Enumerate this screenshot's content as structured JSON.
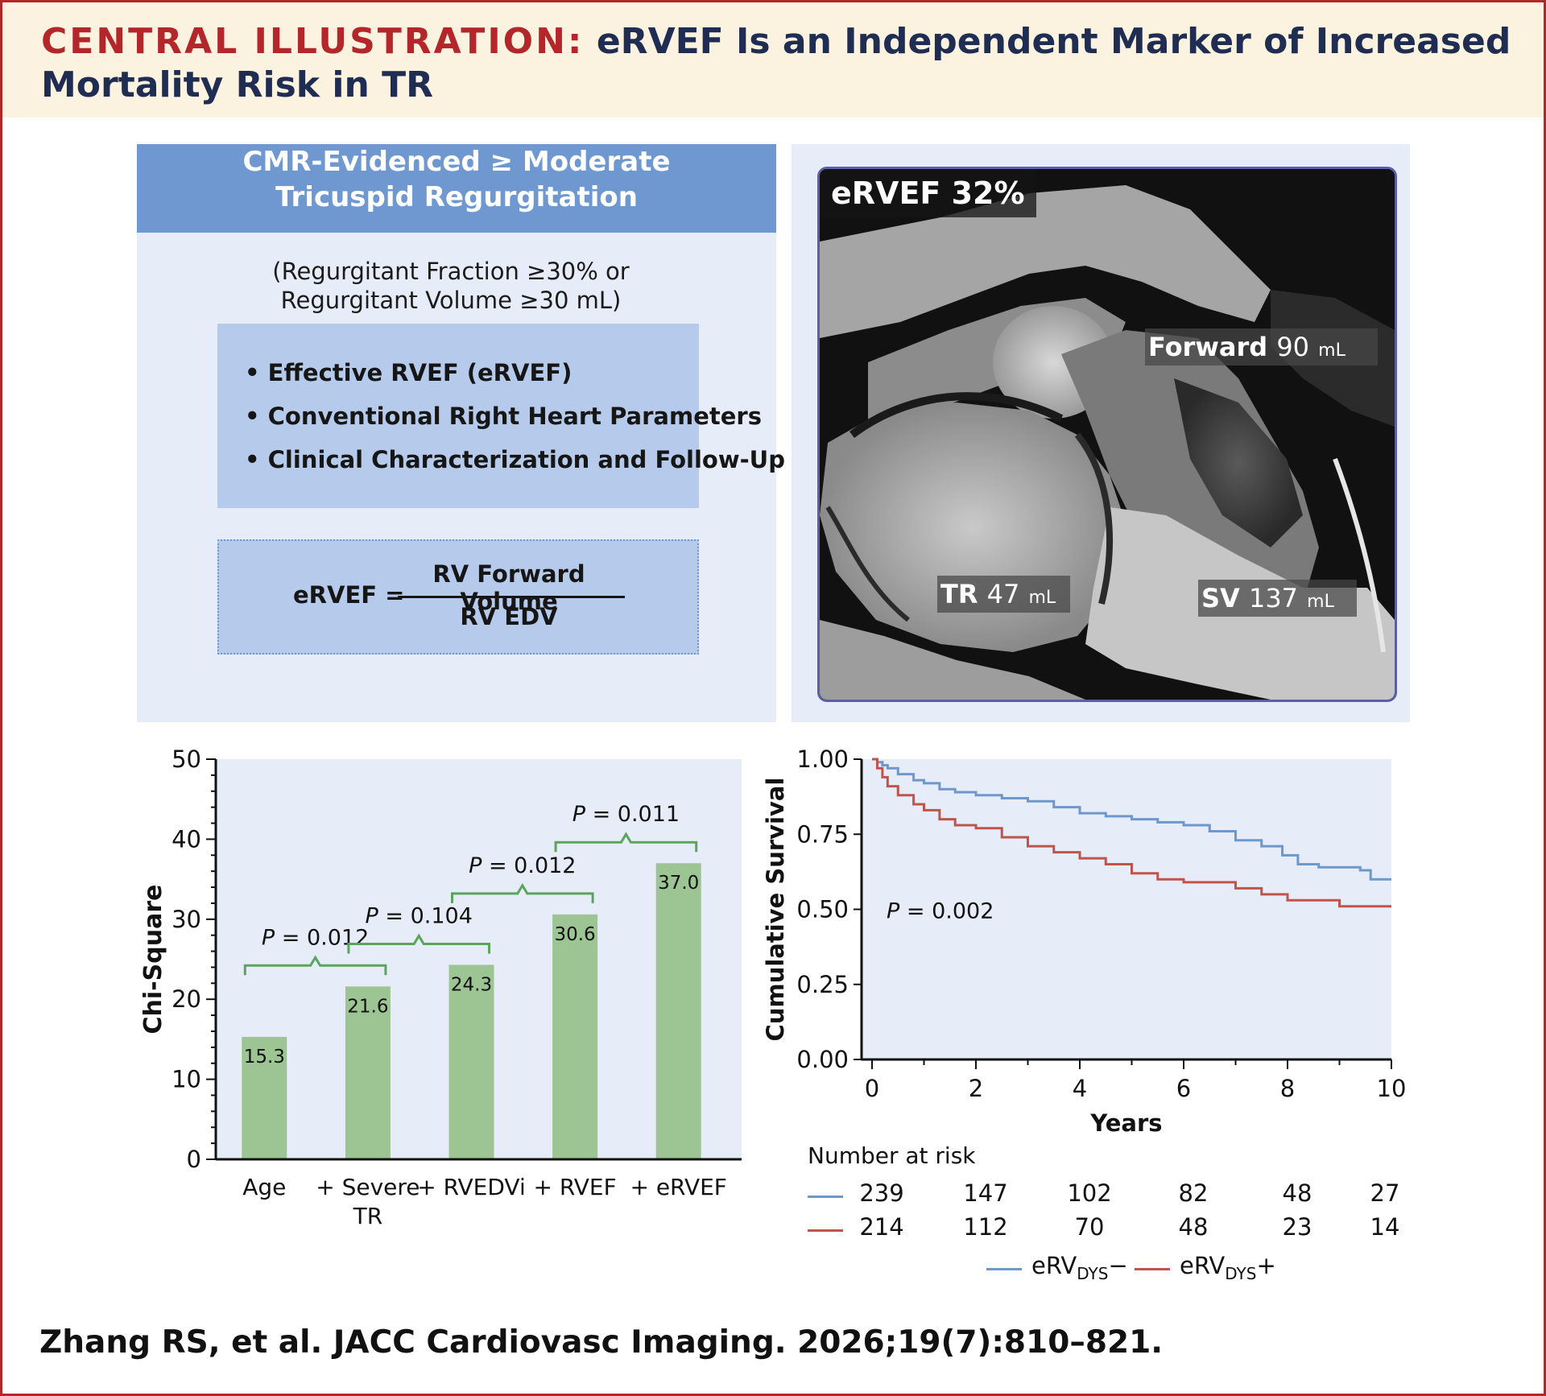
{
  "header": {
    "kicker": "CENTRAL ILLUSTRATION:",
    "title": "eRVEF Is an Independent Marker of Increased Mortality Risk in TR"
  },
  "left_panel": {
    "heading_line1": "CMR-Evidenced ≥ Moderate",
    "heading_line2": "Tricuspid Regurgitation",
    "note_line1": "(Regurgitant Fraction ≥30% or",
    "note_line2": "Regurgitant Volume ≥30 mL)",
    "bullets": [
      "• Effective RVEF (eRVEF)",
      "• Conventional Right Heart Parameters",
      "• Clinical Characterization and Follow-Up"
    ],
    "formula": {
      "lhs": "eRVEF =",
      "numerator": "RV Forward Volume",
      "denominator": "RV EDV"
    }
  },
  "mri_panel": {
    "ervef_label": "eRVEF 32%",
    "forward_label": "Forward",
    "forward_value": "90",
    "forward_unit": "mL",
    "tr_label": "TR",
    "tr_value": "47",
    "tr_unit": "mL",
    "sv_label": "SV",
    "sv_value": "137",
    "sv_unit": "mL"
  },
  "chart_data": [
    {
      "type": "bar",
      "ylabel": "Chi-Square",
      "ylim": [
        0,
        50
      ],
      "yticks": [
        0,
        10,
        20,
        30,
        40,
        50
      ],
      "categories": [
        "Age",
        "+ Severe TR",
        "+ RVEDVi",
        "+ RVEF",
        "+ eRVEF"
      ],
      "category_lines": [
        [
          "Age"
        ],
        [
          "+ Severe",
          "TR"
        ],
        [
          "+ RVEDVi"
        ],
        [
          "+ RVEF"
        ],
        [
          "+ eRVEF"
        ]
      ],
      "values": [
        15.3,
        21.6,
        24.3,
        30.6,
        37.0
      ],
      "value_labels": [
        "15.3",
        "21.6",
        "24.3",
        "30.6",
        "37.0"
      ],
      "comparisons": [
        {
          "from": 0,
          "to": 1,
          "label": "P = 0.012"
        },
        {
          "from": 1,
          "to": 2,
          "label": "P = 0.104"
        },
        {
          "from": 2,
          "to": 3,
          "label": "P = 0.012"
        },
        {
          "from": 3,
          "to": 4,
          "label": "P = 0.011"
        }
      ],
      "bar_color": "#9dc493",
      "bracket_color": "#5aa55a",
      "background": "#e7edf8"
    },
    {
      "type": "line",
      "xlabel": "Years",
      "ylabel": "Cumulative Survival",
      "xlim": [
        0,
        10
      ],
      "ylim": [
        0,
        1
      ],
      "xticks": [
        0,
        2,
        4,
        6,
        8,
        10
      ],
      "yticks": [
        0,
        0.25,
        0.5,
        0.75,
        1.0
      ],
      "ytick_labels": [
        "0.00",
        "0.25",
        "0.50",
        "0.75",
        "1.00"
      ],
      "annotation": "P = 0.002",
      "background": "#e7edf8",
      "series": [
        {
          "name": "eRVDYS−",
          "color": "#6e97cc",
          "x": [
            0,
            0.1,
            0.2,
            0.3,
            0.5,
            0.8,
            1.0,
            1.3,
            1.6,
            2.0,
            2.5,
            3.0,
            3.5,
            4.0,
            4.5,
            5.0,
            5.5,
            6.0,
            6.5,
            7.0,
            7.5,
            7.9,
            8.2,
            8.6,
            9.0,
            9.4,
            9.6,
            10.0
          ],
          "y": [
            1.0,
            0.99,
            0.98,
            0.97,
            0.95,
            0.93,
            0.92,
            0.9,
            0.89,
            0.88,
            0.87,
            0.86,
            0.84,
            0.82,
            0.81,
            0.8,
            0.79,
            0.78,
            0.76,
            0.73,
            0.71,
            0.68,
            0.65,
            0.64,
            0.64,
            0.63,
            0.6,
            0.6
          ]
        },
        {
          "name": "eRVDYS+",
          "color": "#c0544c",
          "x": [
            0,
            0.1,
            0.2,
            0.3,
            0.5,
            0.8,
            1.0,
            1.3,
            1.6,
            2.0,
            2.5,
            3.0,
            3.5,
            4.0,
            4.5,
            5.0,
            5.5,
            6.0,
            6.5,
            7.0,
            7.5,
            8.0,
            8.5,
            9.0,
            10.0
          ],
          "y": [
            1.0,
            0.97,
            0.94,
            0.91,
            0.88,
            0.85,
            0.83,
            0.8,
            0.78,
            0.77,
            0.74,
            0.71,
            0.69,
            0.67,
            0.65,
            0.62,
            0.6,
            0.59,
            0.59,
            0.57,
            0.55,
            0.53,
            0.53,
            0.51,
            0.51
          ]
        }
      ]
    }
  ],
  "risk_table": {
    "title": "Number at risk",
    "rows": [
      {
        "series": "eRVDYS−",
        "color": "#6e97cc",
        "values": [
          "239",
          "147",
          "102",
          "82",
          "48",
          "27"
        ]
      },
      {
        "series": "eRVDYS+",
        "color": "#c0544c",
        "values": [
          "214",
          "112",
          "70",
          "48",
          "23",
          "14"
        ]
      }
    ]
  },
  "legend": {
    "neg_main": "eRV",
    "neg_sub": "DYS",
    "neg_sign": "−",
    "pos_main": "eRV",
    "pos_sub": "DYS",
    "pos_sign": "+"
  },
  "citation": "Zhang RS, et al. JACC Cardiovasc Imaging. 2026;19(7):810–821."
}
